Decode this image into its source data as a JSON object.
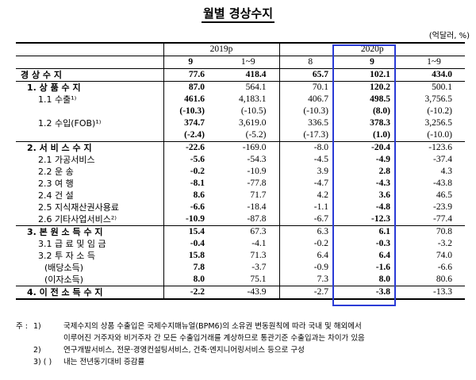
{
  "title": "월별 경상수지",
  "unit": "(억달러, %)",
  "header": {
    "year_2019": "2019p",
    "year_2020": "2020p",
    "cols": [
      "9",
      "1~9",
      "8",
      "9",
      "1~9"
    ]
  },
  "rows": [
    {
      "label": "경 상 수 지",
      "values": [
        "77.6",
        "418.4",
        "65.7",
        "102.1",
        "434.0"
      ],
      "type": "total"
    },
    {
      "label": "1. 상 품 수 지",
      "values": [
        "87.0",
        "564.1",
        "70.1",
        "120.2",
        "500.1"
      ],
      "type": "group"
    },
    {
      "label": "1.1 수출¹⁾",
      "values": [
        "461.6",
        "4,183.1",
        "406.7",
        "498.5",
        "3,756.5"
      ],
      "type": "item"
    },
    {
      "label": "",
      "values": [
        "(-10.3)",
        "(-10.5)",
        "(-10.3)",
        "(8.0)",
        "(-10.2)"
      ],
      "type": "paren"
    },
    {
      "label": "1.2 수입(FOB)¹⁾",
      "values": [
        "374.7",
        "3,619.0",
        "336.5",
        "378.3",
        "3,256.5"
      ],
      "type": "item"
    },
    {
      "label": "",
      "values": [
        "(-2.4)",
        "(-5.2)",
        "(-17.3)",
        "(1.0)",
        "(-10.0)"
      ],
      "type": "paren-end"
    },
    {
      "label": "2. 서 비 스 수 지",
      "values": [
        "-22.6",
        "-169.0",
        "-8.0",
        "-20.4",
        "-123.6"
      ],
      "type": "group"
    },
    {
      "label": "2.1 가공서비스",
      "values": [
        "-5.6",
        "-54.3",
        "-4.5",
        "-4.9",
        "-37.4"
      ],
      "type": "item"
    },
    {
      "label": "2.2 운      송",
      "values": [
        "-0.2",
        "-10.9",
        "3.9",
        "2.8",
        "4.3"
      ],
      "type": "item"
    },
    {
      "label": "2.3 여      행",
      "values": [
        "-8.1",
        "-77.8",
        "-4.7",
        "-4.3",
        "-43.8"
      ],
      "type": "item"
    },
    {
      "label": "2.4 건      설",
      "values": [
        "8.6",
        "71.7",
        "4.2",
        "3.6",
        "46.5"
      ],
      "type": "item"
    },
    {
      "label": "2.5 지식재산권사용료",
      "values": [
        "-6.6",
        "-18.4",
        "-1.1",
        "-4.8",
        "-23.9"
      ],
      "type": "item"
    },
    {
      "label": "2.6 기타사업서비스²⁾",
      "values": [
        "-10.9",
        "-87.8",
        "-6.7",
        "-12.3",
        "-77.4"
      ],
      "type": "item-end"
    },
    {
      "label": "3. 본 원 소 득 수 지",
      "values": [
        "15.4",
        "67.3",
        "6.3",
        "6.1",
        "70.8"
      ],
      "type": "group"
    },
    {
      "label": "3.1 급 료 및 임 금",
      "values": [
        "-0.4",
        "-4.1",
        "-0.2",
        "-0.3",
        "-3.2"
      ],
      "type": "item"
    },
    {
      "label": "3.2 투  자  소  득",
      "values": [
        "15.8",
        "71.3",
        "6.4",
        "6.4",
        "74.0"
      ],
      "type": "item"
    },
    {
      "label": "(배당소득)",
      "values": [
        "7.8",
        "-3.7",
        "-0.9",
        "-1.6",
        "-6.6"
      ],
      "type": "item"
    },
    {
      "label": "(이자소득)",
      "values": [
        "8.0",
        "75.1",
        "7.3",
        "8.0",
        "80.6"
      ],
      "type": "item-end"
    },
    {
      "label": "4. 이 전 소 득 수 지",
      "values": [
        "-2.2",
        "-43.9",
        "-2.7",
        "-3.8",
        "-13.3"
      ],
      "type": "last"
    }
  ],
  "notes": {
    "head": "주 :",
    "items": [
      {
        "num": "1)",
        "text": "국제수지의 상품 수출입은 국제수지매뉴얼(BPM6)의 소유권 변동원칙에 따라 국내 및 해외에서"
      },
      {
        "num": "",
        "text": "이루어진 거주자와 비거주자 간 모든 수출입거래를 계상하므로 통관기준 수출입과는 차이가 있음"
      },
      {
        "num": "2)",
        "text": "연구개발서비스, 전문·경영컨설팅서비스, 건축·엔지니어링서비스 등으로 구성"
      },
      {
        "num": "3) (  )",
        "text": "내는 전년동기대비 증감률"
      }
    ]
  }
}
